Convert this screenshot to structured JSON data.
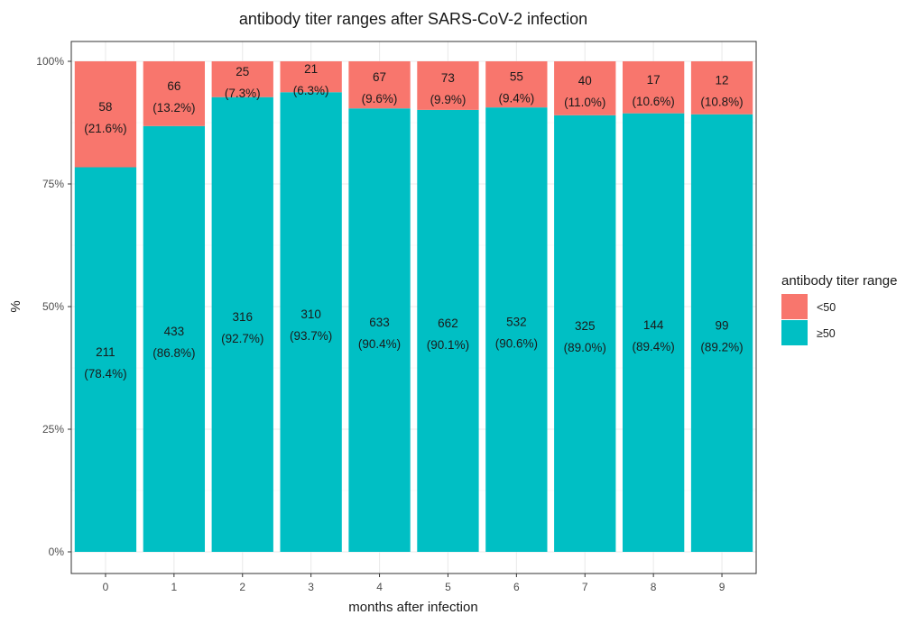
{
  "chart_data": {
    "type": "bar",
    "stacked": true,
    "percent": true,
    "title": "antibody titer ranges after SARS-CoV-2 infection",
    "xlabel": "months after infection",
    "ylabel": "%",
    "categories": [
      "0",
      "1",
      "2",
      "3",
      "4",
      "5",
      "6",
      "7",
      "8",
      "9"
    ],
    "y_ticks": [
      "0%",
      "25%",
      "50%",
      "75%",
      "100%"
    ],
    "ylim": [
      0,
      100
    ],
    "grid": true,
    "legend": {
      "title": "antibody titer range",
      "position": "right",
      "items": [
        {
          "label": "<50",
          "color": "#F8766D"
        },
        {
          "label": "≥50",
          "color": "#00BFC4"
        }
      ]
    },
    "series": [
      {
        "name": "<50",
        "color": "#F8766D",
        "counts": [
          58,
          66,
          25,
          21,
          67,
          73,
          55,
          40,
          17,
          12
        ],
        "percents": [
          21.6,
          13.2,
          7.3,
          6.3,
          9.6,
          9.9,
          9.4,
          11.0,
          10.6,
          10.8
        ],
        "labels": [
          "(21.6%)",
          "(13.2%)",
          "(7.3%)",
          "(6.3%)",
          "(9.6%)",
          "(9.9%)",
          "(9.4%)",
          "(11.0%)",
          "(10.6%)",
          "(10.8%)"
        ]
      },
      {
        "name": "≥50",
        "color": "#00BFC4",
        "counts": [
          211,
          433,
          316,
          310,
          633,
          662,
          532,
          325,
          144,
          99
        ],
        "percents": [
          78.4,
          86.8,
          92.7,
          93.7,
          90.4,
          90.1,
          90.6,
          89.0,
          89.4,
          89.2
        ],
        "labels": [
          "(78.4%)",
          "(86.8%)",
          "(92.7%)",
          "(93.7%)",
          "(90.4%)",
          "(90.1%)",
          "(90.6%)",
          "(89.0%)",
          "(89.4%)",
          "(89.2%)"
        ]
      }
    ]
  }
}
